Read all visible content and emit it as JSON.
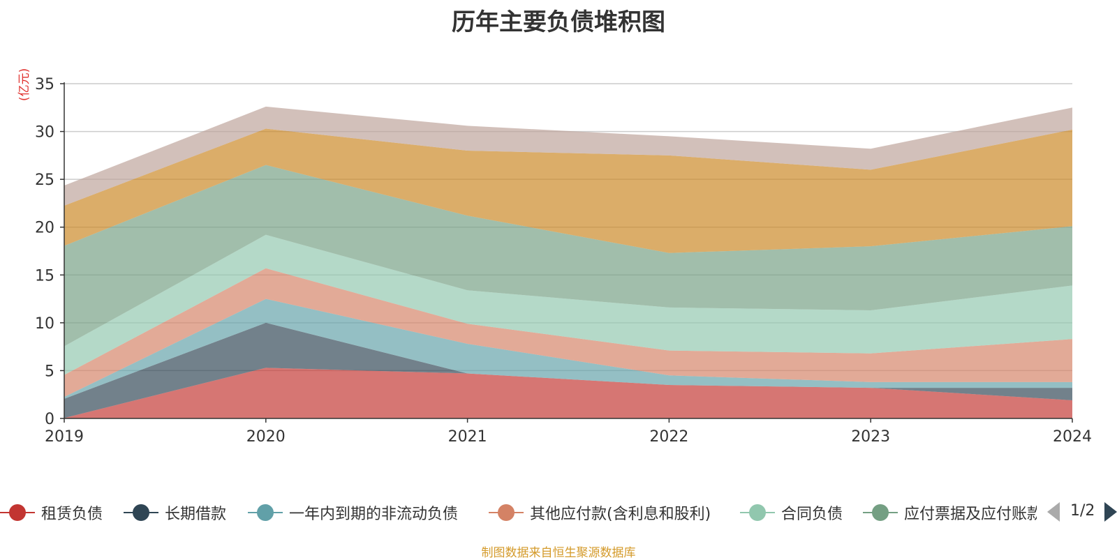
{
  "chart_data": {
    "type": "area",
    "title": "历年主要负债堆积图",
    "unit": "(亿元)",
    "x": [
      "2019",
      "2020",
      "2021",
      "2022",
      "2023",
      "2024"
    ],
    "ylim": [
      0,
      35
    ],
    "yticks": [
      0,
      5,
      10,
      15,
      20,
      25,
      30,
      35
    ],
    "stacked": true,
    "grid": true,
    "series": [
      {
        "name": "租赁负债",
        "color": "#c23531",
        "values": [
          0.05,
          5.3,
          4.7,
          3.5,
          3.2,
          1.9
        ]
      },
      {
        "name": "长期借款",
        "color": "#2f4554",
        "values": [
          2.0,
          4.7,
          0.0,
          0.0,
          0.0,
          1.3
        ]
      },
      {
        "name": "一年内到期的非流动负债",
        "color": "#61a0a8",
        "values": [
          0.2,
          2.5,
          3.1,
          1.0,
          0.6,
          0.6
        ]
      },
      {
        "name": "其他应付款(含利息和股利)",
        "color": "#d48265",
        "values": [
          2.3,
          3.2,
          2.1,
          2.6,
          3.0,
          4.5
        ]
      },
      {
        "name": "合同负债",
        "color": "#91c7ae",
        "values": [
          3.0,
          3.5,
          3.5,
          4.5,
          4.5,
          5.6
        ]
      },
      {
        "name": "应付票据及应付账款",
        "color": "#749f83",
        "values": [
          10.5,
          7.3,
          7.8,
          5.7,
          6.7,
          6.2
        ]
      },
      {
        "name": "",
        "color": "#ca8622",
        "values": [
          4.2,
          3.8,
          6.8,
          10.2,
          8.0,
          10.1
        ]
      },
      {
        "name": "",
        "color": "#bda29a",
        "values": [
          2.1,
          2.3,
          2.6,
          2.0,
          2.2,
          2.3
        ]
      }
    ],
    "legend_visible_count": 6,
    "legend_page": "1/2"
  },
  "source_note": "制图数据来自恒生聚源数据库",
  "icons": {
    "pager_prev": "triangle-left-icon",
    "pager_next": "triangle-right-icon"
  }
}
